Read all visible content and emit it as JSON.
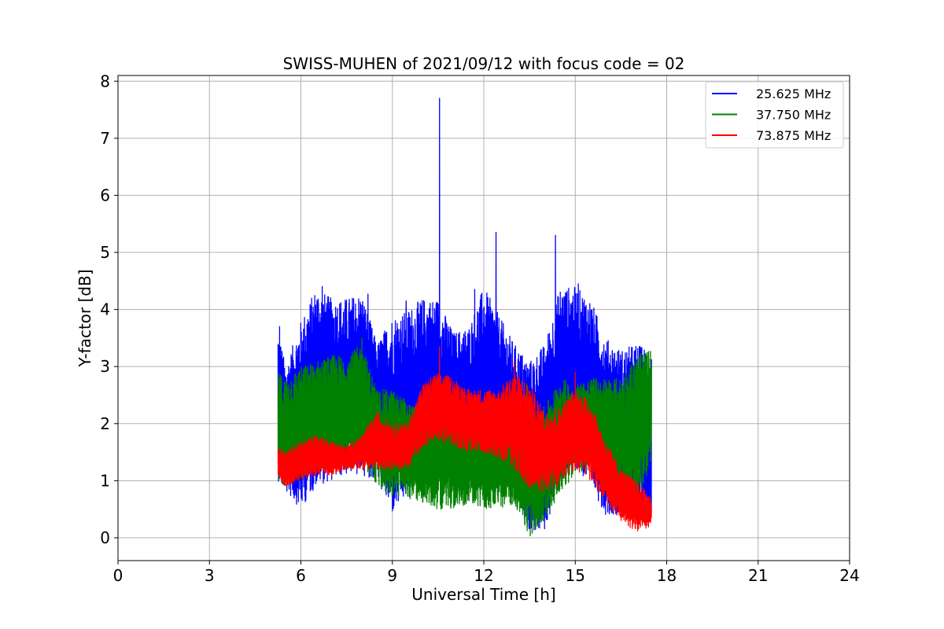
{
  "chart_data": {
    "type": "line",
    "title": "SWISS-MUHEN of 2021/09/12 with focus code = 02",
    "xlabel": "Universal Time [h]",
    "ylabel": "Y-factor [dB]",
    "xlim": [
      0,
      24
    ],
    "ylim": [
      -0.4,
      8.1
    ],
    "xticks": [
      0,
      3,
      6,
      9,
      12,
      15,
      18,
      21,
      24
    ],
    "yticks": [
      0,
      1,
      2,
      3,
      4,
      5,
      6,
      7,
      8
    ],
    "xtick_labels": [
      "0",
      "3",
      "6",
      "9",
      "12",
      "15",
      "18",
      "21",
      "24"
    ],
    "ytick_labels": [
      "0",
      "1",
      "2",
      "3",
      "4",
      "5",
      "6",
      "7",
      "8"
    ],
    "grid": true,
    "legend_position": "top-right",
    "data_x_range": [
      5.25,
      17.5
    ],
    "series": [
      {
        "name": "25.625 MHz",
        "color": "#0000ff",
        "envelope": {
          "x": [
            5.25,
            5.5,
            6.0,
            6.5,
            7.0,
            7.5,
            8.0,
            8.5,
            9.0,
            9.5,
            10.0,
            10.5,
            11.0,
            11.5,
            12.0,
            12.5,
            13.0,
            13.5,
            14.0,
            14.5,
            15.0,
            15.5,
            16.0,
            16.5,
            17.0,
            17.5
          ],
          "low": [
            1.0,
            0.8,
            0.5,
            0.9,
            1.0,
            1.1,
            1.1,
            1.0,
            0.4,
            0.7,
            0.9,
            1.0,
            1.1,
            1.0,
            0.9,
            0.9,
            1.0,
            0.1,
            0.1,
            1.0,
            1.2,
            0.9,
            0.4,
            0.4,
            0.4,
            0.3
          ],
          "high": [
            3.7,
            3.0,
            3.8,
            4.4,
            4.2,
            4.2,
            4.3,
            3.4,
            3.9,
            4.0,
            4.2,
            4.2,
            3.6,
            3.7,
            4.4,
            3.9,
            3.4,
            3.1,
            3.4,
            4.4,
            4.4,
            4.2,
            3.5,
            3.3,
            3.4,
            3.3
          ]
        },
        "spikes": [
          [
            5.3,
            3.7
          ],
          [
            6.7,
            4.4
          ],
          [
            8.2,
            4.27
          ],
          [
            9.45,
            4.15
          ],
          [
            10.55,
            7.7
          ],
          [
            11.7,
            4.35
          ],
          [
            12.4,
            5.35
          ],
          [
            14.35,
            5.3
          ],
          [
            15.1,
            4.45
          ]
        ]
      },
      {
        "name": "37.750 MHz",
        "color": "#008000",
        "envelope": {
          "x": [
            5.25,
            5.5,
            6.0,
            6.5,
            7.0,
            7.5,
            8.0,
            8.5,
            9.0,
            9.5,
            10.0,
            10.5,
            11.0,
            11.5,
            12.0,
            12.5,
            13.0,
            13.5,
            14.0,
            14.5,
            15.0,
            15.5,
            16.0,
            16.5,
            17.0,
            17.5
          ],
          "low": [
            1.0,
            0.9,
            1.0,
            1.2,
            1.2,
            1.2,
            1.3,
            0.9,
            0.7,
            0.7,
            0.6,
            0.5,
            0.5,
            0.6,
            0.5,
            0.5,
            0.6,
            0.0,
            0.3,
            0.8,
            1.1,
            1.2,
            1.0,
            1.0,
            0.4,
            1.4
          ],
          "high": [
            2.9,
            2.8,
            3.0,
            3.1,
            3.2,
            3.2,
            3.4,
            2.6,
            2.6,
            2.4,
            2.2,
            2.4,
            2.4,
            2.2,
            2.1,
            2.0,
            2.1,
            2.2,
            2.3,
            2.8,
            2.7,
            2.8,
            2.8,
            2.8,
            3.2,
            3.3
          ]
        },
        "spikes": [
          [
            8.0,
            3.5
          ],
          [
            13.4,
            2.7
          ]
        ]
      },
      {
        "name": "73.875 MHz",
        "color": "#ff0000",
        "envelope": {
          "x": [
            5.25,
            5.5,
            6.0,
            6.5,
            7.0,
            7.5,
            8.0,
            8.5,
            9.0,
            9.5,
            10.0,
            10.5,
            11.0,
            11.5,
            12.0,
            12.5,
            13.0,
            13.5,
            14.0,
            14.5,
            15.0,
            15.5,
            16.0,
            16.5,
            17.0,
            17.5
          ],
          "low": [
            1.0,
            0.9,
            1.0,
            1.1,
            1.1,
            1.2,
            1.2,
            1.2,
            1.2,
            1.2,
            1.6,
            1.7,
            1.6,
            1.5,
            1.5,
            1.4,
            1.2,
            0.8,
            0.8,
            0.9,
            1.2,
            1.0,
            0.6,
            0.3,
            0.1,
            0.2
          ],
          "high": [
            1.6,
            1.5,
            1.7,
            1.8,
            1.7,
            1.6,
            1.8,
            2.2,
            2.0,
            2.0,
            2.7,
            2.9,
            2.8,
            2.6,
            2.6,
            2.6,
            2.9,
            2.7,
            2.2,
            2.3,
            2.6,
            2.4,
            1.7,
            1.2,
            1.0,
            0.7
          ]
        },
        "spikes": [
          [
            10.55,
            3.35
          ],
          [
            13.0,
            3.1
          ],
          [
            15.0,
            2.9
          ]
        ]
      }
    ]
  }
}
